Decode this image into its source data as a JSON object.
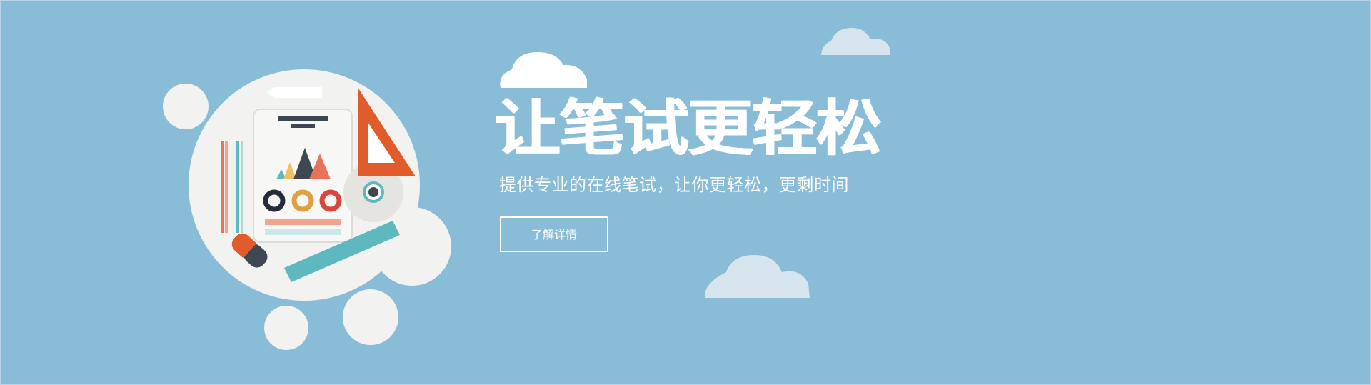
{
  "hero": {
    "headline": "让笔试更轻松",
    "subtitle": "提供专业的在线笔试，让你更轻松，更剩时间",
    "cta_label": "了解详情"
  },
  "colors": {
    "background": "#89bcd6",
    "accent_orange": "#e05c2a",
    "accent_teal": "#5db8bf",
    "bubble": "#f2f2f0",
    "cloud_light": "#d6e4ed",
    "dark": "#3d4853"
  },
  "icons": [
    "cloud-icon",
    "phone-icon",
    "triangle-ruler-icon",
    "ruler-icon",
    "pencil-icon",
    "eraser-icon",
    "mountain-chart-icon"
  ]
}
